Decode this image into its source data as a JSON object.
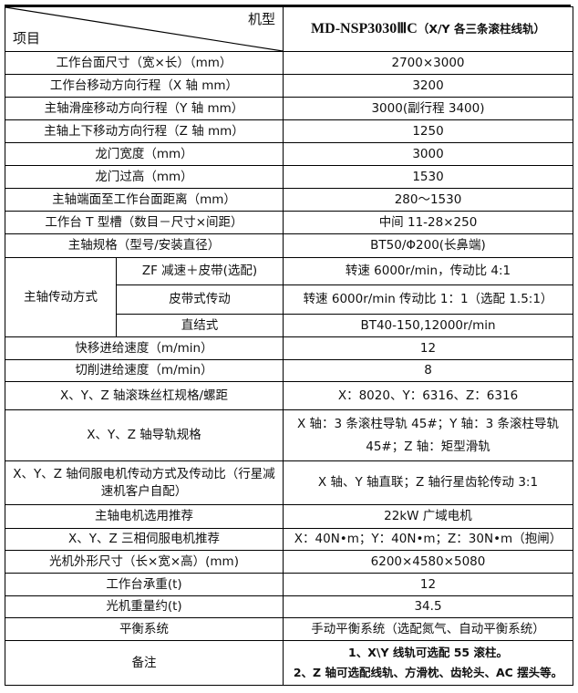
{
  "header": {
    "corner_top": "机型",
    "corner_bottom": "项目",
    "model": "MD-NSP3030ⅢC",
    "model_note": "（X/Y 各三条滚柱线轨）"
  },
  "rows": [
    {
      "label": "工作台面尺寸（宽×长）（mm）",
      "value": "2700×3000"
    },
    {
      "label": "工作台移动方向行程（X 轴 mm）",
      "value": "3200"
    },
    {
      "label": "主轴滑座移动方向行程（Y 轴 mm）",
      "value": "3000(副行程 3400)"
    },
    {
      "label": "主轴上下移动方向行程（Z 轴 mm）",
      "value": "1250"
    },
    {
      "label": "龙门宽度（mm）",
      "value": "3000"
    },
    {
      "label": "龙门过高（mm）",
      "value": "1530"
    },
    {
      "label": "主轴端面至工作台面距离（mm）",
      "value": "280～1530"
    },
    {
      "label": "工作台 T 型槽（数目－尺寸×间距）",
      "value": "中间 11-28×250"
    },
    {
      "label": "主轴规格（型号/安装直径）",
      "value": "BT50/Φ200(长鼻端)"
    }
  ],
  "drive": {
    "label": "主轴传动方式",
    "options": [
      {
        "label": "ZF 减速＋皮带(选配)",
        "value": "转速 6000r/min，传动比 4:1"
      },
      {
        "label": "皮带式传动",
        "value": "转速 6000r/min 传动比 1：1（选配 1.5:1）"
      },
      {
        "label": "直结式",
        "value": "BT40-150,12000r/min"
      }
    ]
  },
  "rows2": [
    {
      "label": "快移进给速度（m/min）",
      "value": "12"
    },
    {
      "label": "切削进给速度（m/min）",
      "value": "8"
    },
    {
      "label": "X、Y、Z 轴滚珠丝杠规格/螺距",
      "value": "X：8020、Y：6316、Z：6316"
    },
    {
      "label": "X、Y、Z 轴导轨规格",
      "value": "X 轴：3 条滚柱导轨 45#；Y 轴：3 条滚柱导轨 45#；Z 轴：矩型滑轨"
    },
    {
      "label": "X、Y、Z 轴伺服电机传动方式及传动比（行星减速机客户自配）",
      "value": "X 轴、Y 轴直联；Z 轴行星齿轮传动 3:1"
    },
    {
      "label": "主轴电机选用推荐",
      "value": "22kW 广域电机"
    },
    {
      "label": "X、Y、Z 三相伺服电机推荐",
      "value": "X：40N•m；Y：40N•m；Z：30N•m（抱闸）"
    },
    {
      "label": "光机外形尺寸（长×宽×高）(mm)",
      "value": "6200×4580×5080"
    },
    {
      "label": "工作台承重(t)",
      "value": "12"
    },
    {
      "label": "光机重量约(t)",
      "value": "34.5"
    },
    {
      "label": "平衡系统",
      "value": "手动平衡系统（选配氮气、自动平衡系统）"
    }
  ],
  "notes": {
    "label": "备注",
    "lines": [
      "1、X\\Y 线轨可选配 55 滚柱。",
      "2、Z 轴可选配线轨、方滑枕、齿轮头、AC 摆头等。"
    ]
  }
}
